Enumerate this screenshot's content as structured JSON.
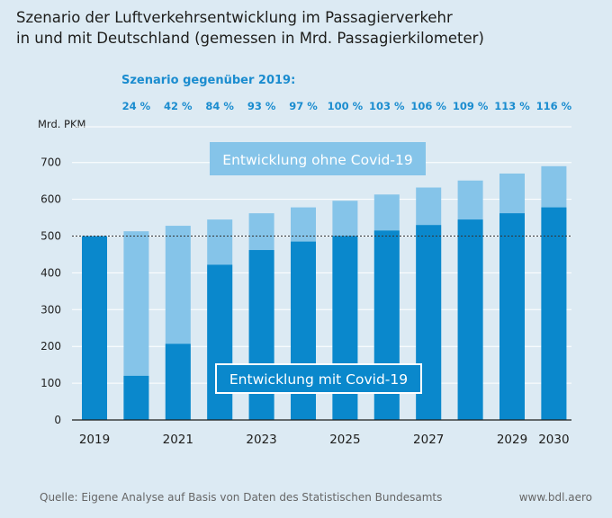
{
  "header": {
    "title_line1": "Szenario der Luftverkehrsentwicklung im Passagierverkehr",
    "title_line2": "in und mit Deutschland (gemessen in Mrd. Passagierkilometer)"
  },
  "footer": {
    "source": "Quelle: Eigene Analyse auf Basis von Daten des Statistischen Bundesamts",
    "website": "www.bdl.aero"
  },
  "chart_data": {
    "type": "bar",
    "ylabel": "Mrd. PKM",
    "ylim": [
      0,
      800
    ],
    "yticks": [
      "0",
      "100",
      "200",
      "300",
      "400",
      "500",
      "600",
      "700"
    ],
    "ytick_values": [
      0,
      100,
      200,
      300,
      400,
      500,
      600,
      700
    ],
    "categories": [
      "2019",
      "2020",
      "2021",
      "2022",
      "2023",
      "2024",
      "2025",
      "2026",
      "2027",
      "2028",
      "2029",
      "2030"
    ],
    "xtick_labels": [
      "2019",
      "",
      "2021",
      "",
      "2023",
      "",
      "2025",
      "",
      "2027",
      "",
      "2029",
      "2030"
    ],
    "series": [
      {
        "name": "Entwicklung mit Covid-19",
        "values": [
          500,
          120,
          207,
          422,
          462,
          485,
          500,
          515,
          530,
          545,
          562,
          578
        ]
      },
      {
        "name": "Entwicklung ohne Covid-19",
        "values": [
          500,
          513,
          528,
          545,
          562,
          578,
          596,
          613,
          632,
          651,
          670,
          690
        ]
      }
    ],
    "scenario_title": "Szenario gegenüber 2019:",
    "scenario_labels": [
      "24 %",
      "42 %",
      "84 %",
      "93 %",
      "97 %",
      "100 %",
      "103 %",
      "106 %",
      "109 %",
      "113 %",
      "116 %"
    ],
    "reference_line": 500,
    "grid": true,
    "colors": {
      "with_covid": "#0a88cc",
      "without_covid": "#85c4e9",
      "accent_text": "#1a8ccf",
      "background": "#dceaf3",
      "grid": "#ffffff"
    }
  }
}
